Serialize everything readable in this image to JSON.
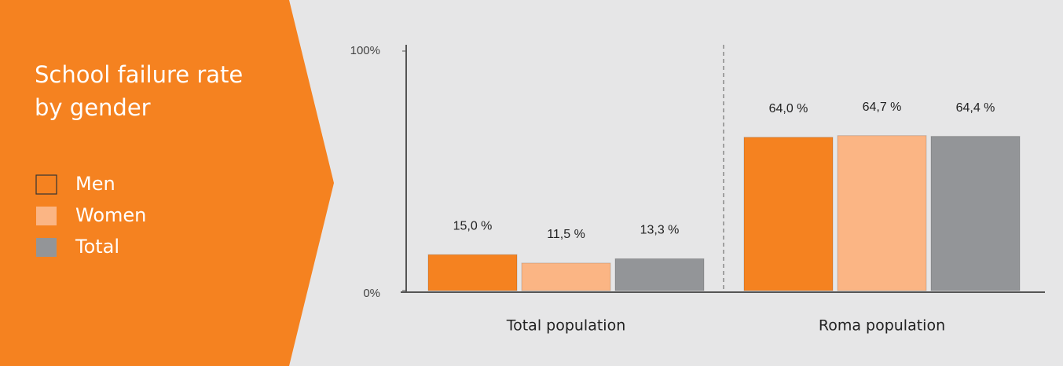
{
  "chart_data": {
    "type": "bar",
    "title": "School failure rate by gender",
    "categories": [
      "Total population",
      "Roma population"
    ],
    "series": [
      {
        "name": "Men",
        "color": "#f58220",
        "values": [
          15.0,
          64.0
        ],
        "value_labels": [
          "15,0 %",
          "64,0 %"
        ]
      },
      {
        "name": "Women",
        "color": "#fbb584",
        "values": [
          11.5,
          64.7
        ],
        "value_labels": [
          "11,5 %",
          "64,7 %"
        ]
      },
      {
        "name": "Total",
        "color": "#939598",
        "values": [
          13.3,
          64.4
        ],
        "value_labels": [
          "13,3 %",
          "64,4 %"
        ]
      }
    ],
    "ylim": [
      0,
      100
    ],
    "yticks": [
      {
        "value": 0,
        "label": "0%"
      },
      {
        "value": 100,
        "label": "100%"
      }
    ]
  }
}
